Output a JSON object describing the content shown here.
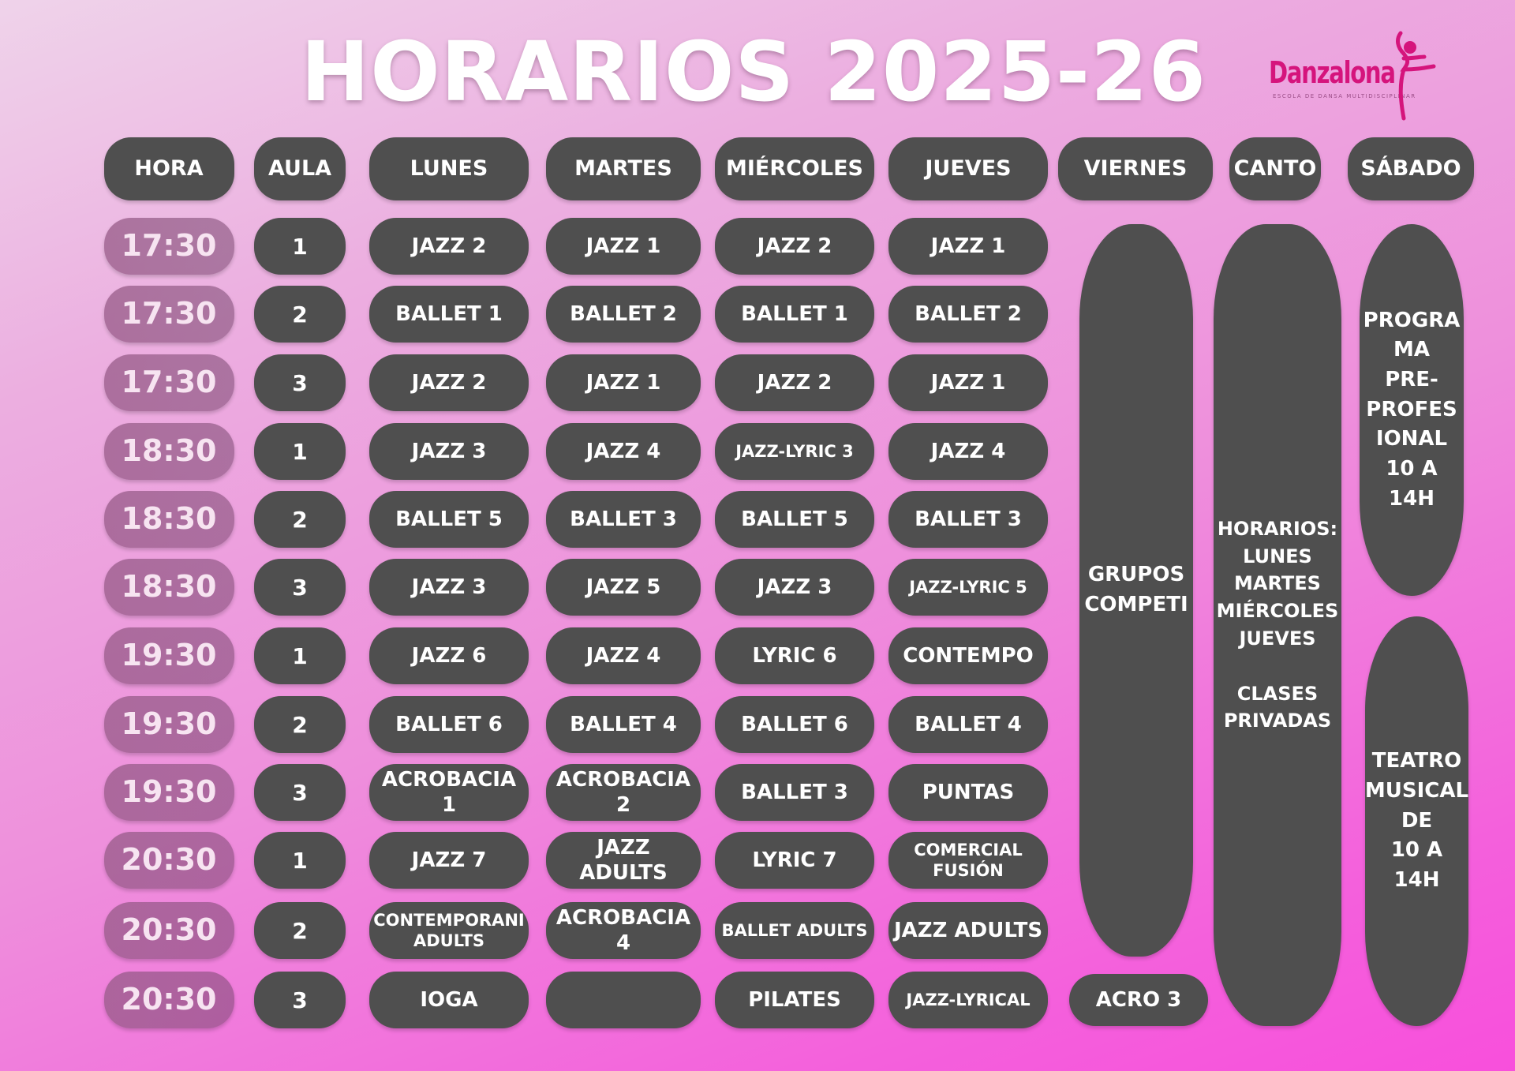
{
  "title": "HORARIOS 2025-26",
  "logo": {
    "name": "Danzalona",
    "tagline": "ESCOLA DE DANSA MULTIDISCIPLINAR",
    "color": "#d5147c"
  },
  "headers": [
    "HORA",
    "AULA",
    "LUNES",
    "MARTES",
    "MIÉRCOLES",
    "JUEVES",
    "VIERNES",
    "CANTO",
    "SÁBADO"
  ],
  "rows": [
    {
      "hora": "17:30",
      "aula": "1",
      "lunes": "JAZZ 2",
      "martes": "JAZZ 1",
      "miercoles": "JAZZ 2",
      "jueves": "JAZZ 1"
    },
    {
      "hora": "17:30",
      "aula": "2",
      "lunes": "BALLET  1",
      "martes": "BALLET 2",
      "miercoles": "BALLET 1",
      "jueves": "BALLET 2"
    },
    {
      "hora": "17:30",
      "aula": "3",
      "lunes": "JAZZ 2",
      "martes": "JAZZ 1",
      "miercoles": "JAZZ 2",
      "jueves": "JAZZ 1"
    },
    {
      "hora": "18:30",
      "aula": "1",
      "lunes": "JAZZ 3",
      "martes": "JAZZ 4",
      "miercoles": "JAZZ-LYRIC 3",
      "jueves": "JAZZ 4"
    },
    {
      "hora": "18:30",
      "aula": "2",
      "lunes": "BALLET 5",
      "martes": "BALLET 3",
      "miercoles": "BALLET 5",
      "jueves": "BALLET 3"
    },
    {
      "hora": "18:30",
      "aula": "3",
      "lunes": "JAZZ 3",
      "martes": "JAZZ 5",
      "miercoles": "JAZZ 3",
      "jueves": "JAZZ-LYRIC 5"
    },
    {
      "hora": "19:30",
      "aula": "1",
      "lunes": "JAZZ 6",
      "martes": "JAZZ 4",
      "miercoles": "LYRIC 6",
      "jueves": "CONTEMPO"
    },
    {
      "hora": "19:30",
      "aula": "2",
      "lunes": "BALLET 6",
      "martes": "BALLET 4",
      "miercoles": "BALLET 6",
      "jueves": "BALLET 4"
    },
    {
      "hora": "19:30",
      "aula": "3",
      "lunes": "ACROBACIA 1",
      "martes": "ACROBACIA 2",
      "miercoles": "BALLET 3",
      "jueves": "PUNTAS"
    },
    {
      "hora": "20:30",
      "aula": "1",
      "lunes": "JAZZ 7",
      "martes": "JAZZ ADULTS",
      "miercoles": "LYRIC  7",
      "jueves": "COMERCIAL\nFUSIÓN"
    },
    {
      "hora": "20:30",
      "aula": "2",
      "lunes": "CONTEMPORANI\nADULTS",
      "martes": "ACROBACIA 4",
      "miercoles": "BALLET ADULTS",
      "jueves": "JAZZ ADULTS"
    },
    {
      "hora": "20:30",
      "aula": "3",
      "lunes": "IOGA",
      "martes": "",
      "miercoles": "PILATES",
      "jueves": "JAZZ-LYRICAL"
    }
  ],
  "viernes": {
    "main": "GRUPOS\nCOMPETI",
    "extra": "ACRO 3"
  },
  "canto": "HORARIOS:\nLUNES\nMARTES\nMIÉRCOLES\nJUEVES\n\nCLASES\nPRIVADAS",
  "sabado": {
    "upper": "PROGRA\nMA\nPRE-\nPROFES\nIONAL\n10 A 14H",
    "lower": "TEATRO\nMUSICAL\nDE\n10 A 14H"
  }
}
